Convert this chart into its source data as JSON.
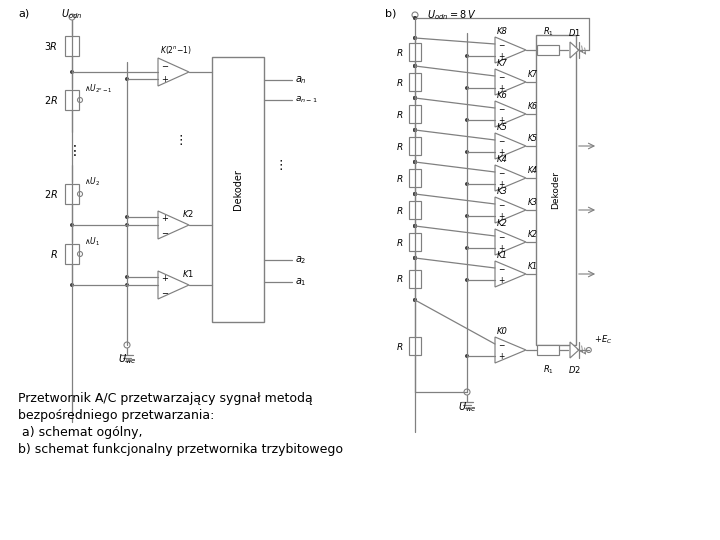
{
  "bg_color": "#ffffff",
  "lc": "#808080",
  "tc": "#000000",
  "caption_lines": [
    "Przetwornik A/C przetwarzający sygnał metodą",
    "bezpośredniego przetwarzania:",
    " a) schemat ogólny,",
    "b) schemat funkcjonalny przetwornika trzybitowego"
  ],
  "comp_ys_b": [
    490,
    458,
    426,
    394,
    362,
    330,
    298,
    266,
    190
  ],
  "node_ys_b": [
    502,
    474,
    442,
    410,
    378,
    346,
    314,
    282,
    240
  ],
  "comp_labels_b": [
    "K8",
    "K7",
    "K6",
    "K5",
    "K4",
    "K3",
    "K2",
    "K1",
    "K0"
  ]
}
